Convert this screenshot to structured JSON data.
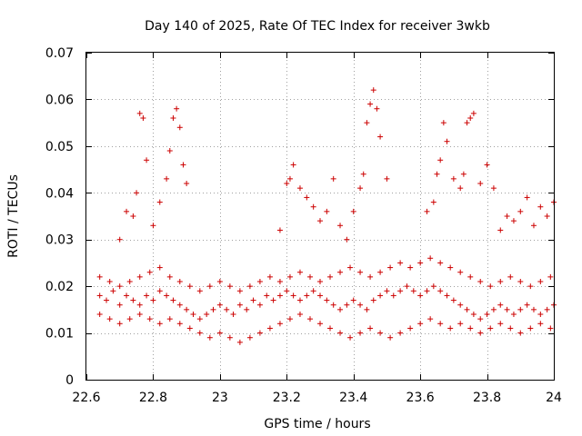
{
  "chart_data": {
    "type": "scatter",
    "title": "Day 140 of 2025, Rate Of TEC Index for receiver 3wkb",
    "xlabel": "GPS time / hours",
    "ylabel": "ROTI / TECUs",
    "xlim": [
      22.6,
      24.0
    ],
    "ylim": [
      0,
      0.07
    ],
    "x_ticks": [
      22.6,
      22.8,
      23.0,
      23.2,
      23.4,
      23.6,
      23.8,
      24.0
    ],
    "x_tick_labels": [
      "22.6",
      "22.8",
      "23",
      "23.2",
      "23.4",
      "23.6",
      "23.8",
      "24"
    ],
    "y_ticks": [
      0,
      0.01,
      0.02,
      0.03,
      0.04,
      0.05,
      0.06,
      0.07
    ],
    "y_tick_labels": [
      "0",
      "0.01",
      "0.02",
      "0.03",
      "0.04",
      "0.05",
      "0.06",
      "0.07"
    ],
    "grid": true,
    "marker": "+",
    "color": "#cc0000",
    "series": [
      {
        "x": [
          22.64,
          22.66,
          22.68,
          22.7,
          22.72,
          22.74,
          22.76,
          22.78,
          22.8,
          22.82,
          22.84,
          22.86,
          22.88,
          22.9,
          22.92,
          22.94,
          22.96,
          22.98,
          23.0,
          23.02,
          23.04,
          23.06,
          23.08,
          23.1,
          23.12,
          23.14,
          23.16,
          23.18,
          23.2,
          23.22,
          23.24,
          23.26,
          23.28,
          23.3,
          23.32,
          23.34,
          23.36,
          23.38,
          23.4,
          23.42,
          23.44,
          23.46,
          23.48,
          23.5,
          23.52,
          23.54,
          23.56,
          23.58,
          23.6,
          23.62,
          23.64,
          23.66,
          23.68,
          23.7,
          23.72,
          23.74,
          23.76,
          23.78,
          23.8,
          23.82,
          23.84,
          23.86,
          23.88,
          23.9,
          23.92,
          23.94,
          23.96,
          23.98,
          24.0
        ],
        "y": [
          0.018,
          0.017,
          0.019,
          0.016,
          0.018,
          0.017,
          0.016,
          0.018,
          0.017,
          0.019,
          0.018,
          0.017,
          0.016,
          0.015,
          0.014,
          0.013,
          0.014,
          0.015,
          0.016,
          0.015,
          0.014,
          0.016,
          0.015,
          0.017,
          0.016,
          0.018,
          0.017,
          0.018,
          0.019,
          0.018,
          0.017,
          0.018,
          0.019,
          0.018,
          0.017,
          0.016,
          0.015,
          0.016,
          0.017,
          0.016,
          0.015,
          0.017,
          0.018,
          0.019,
          0.018,
          0.019,
          0.02,
          0.019,
          0.018,
          0.019,
          0.02,
          0.019,
          0.018,
          0.017,
          0.016,
          0.015,
          0.014,
          0.013,
          0.014,
          0.015,
          0.016,
          0.015,
          0.014,
          0.015,
          0.016,
          0.015,
          0.014,
          0.015,
          0.016
        ]
      },
      {
        "x": [
          22.64,
          22.67,
          22.7,
          22.73,
          22.76,
          22.79,
          22.82,
          22.85,
          22.88,
          22.91,
          22.94,
          22.97,
          23.0,
          23.03,
          23.06,
          23.09,
          23.12,
          23.15,
          23.18,
          23.21,
          23.24,
          23.27,
          23.3,
          23.33,
          23.36,
          23.39,
          23.42,
          23.45,
          23.48,
          23.51,
          23.54,
          23.57,
          23.6,
          23.63,
          23.66,
          23.69,
          23.72,
          23.75,
          23.78,
          23.81,
          23.84,
          23.87,
          23.9,
          23.93,
          23.96,
          23.99
        ],
        "y": [
          0.022,
          0.021,
          0.02,
          0.021,
          0.022,
          0.023,
          0.024,
          0.022,
          0.021,
          0.02,
          0.019,
          0.02,
          0.021,
          0.02,
          0.019,
          0.02,
          0.021,
          0.022,
          0.021,
          0.022,
          0.023,
          0.022,
          0.021,
          0.022,
          0.023,
          0.024,
          0.023,
          0.022,
          0.023,
          0.024,
          0.025,
          0.024,
          0.025,
          0.026,
          0.025,
          0.024,
          0.023,
          0.022,
          0.021,
          0.02,
          0.021,
          0.022,
          0.021,
          0.02,
          0.021,
          0.022
        ]
      },
      {
        "x": [
          22.64,
          22.67,
          22.7,
          22.73,
          22.76,
          22.79,
          22.82,
          22.85,
          22.88,
          22.91,
          22.94,
          22.97,
          23.0,
          23.03,
          23.06,
          23.09,
          23.12,
          23.15,
          23.18,
          23.21,
          23.24,
          23.27,
          23.3,
          23.33,
          23.36,
          23.39,
          23.42,
          23.45,
          23.48,
          23.51,
          23.54,
          23.57,
          23.6,
          23.63,
          23.66,
          23.69,
          23.72,
          23.75,
          23.78,
          23.81,
          23.84,
          23.87,
          23.9,
          23.93,
          23.96,
          23.99
        ],
        "y": [
          0.014,
          0.013,
          0.012,
          0.013,
          0.014,
          0.013,
          0.012,
          0.013,
          0.012,
          0.011,
          0.01,
          0.009,
          0.01,
          0.009,
          0.008,
          0.009,
          0.01,
          0.011,
          0.012,
          0.013,
          0.014,
          0.013,
          0.012,
          0.011,
          0.01,
          0.009,
          0.01,
          0.011,
          0.01,
          0.009,
          0.01,
          0.011,
          0.012,
          0.013,
          0.012,
          0.011,
          0.012,
          0.011,
          0.01,
          0.011,
          0.012,
          0.011,
          0.01,
          0.011,
          0.012,
          0.011
        ]
      },
      {
        "x": [
          22.7,
          22.72,
          22.74,
          22.75,
          22.76,
          22.77,
          22.78,
          22.8,
          22.82,
          22.84,
          22.85,
          22.86,
          22.87,
          22.88,
          22.89,
          22.9,
          23.18,
          23.2,
          23.21,
          23.22,
          23.24,
          23.26,
          23.28,
          23.3,
          23.32,
          23.34,
          23.36,
          23.38,
          23.4,
          23.42,
          23.43,
          23.44,
          23.45,
          23.46,
          23.47,
          23.48,
          23.5,
          23.62,
          23.64,
          23.65,
          23.66,
          23.67,
          23.68,
          23.7,
          23.72,
          23.73,
          23.74,
          23.75,
          23.76,
          23.78,
          23.8,
          23.82,
          23.84,
          23.86,
          23.88,
          23.9,
          23.92,
          23.94,
          23.96,
          23.98,
          24.0
        ],
        "y": [
          0.03,
          0.036,
          0.035,
          0.04,
          0.057,
          0.056,
          0.047,
          0.033,
          0.038,
          0.043,
          0.049,
          0.056,
          0.058,
          0.054,
          0.046,
          0.042,
          0.032,
          0.042,
          0.043,
          0.046,
          0.041,
          0.039,
          0.037,
          0.034,
          0.036,
          0.043,
          0.033,
          0.03,
          0.036,
          0.041,
          0.044,
          0.055,
          0.059,
          0.062,
          0.058,
          0.052,
          0.043,
          0.036,
          0.038,
          0.044,
          0.047,
          0.055,
          0.051,
          0.043,
          0.041,
          0.044,
          0.055,
          0.056,
          0.057,
          0.042,
          0.046,
          0.041,
          0.032,
          0.035,
          0.034,
          0.036,
          0.039,
          0.033,
          0.037,
          0.035,
          0.038
        ]
      }
    ]
  }
}
